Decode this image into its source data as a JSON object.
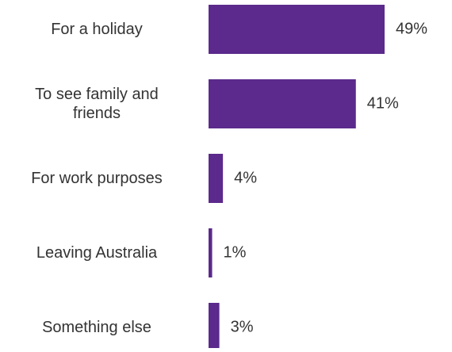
{
  "chart_data": {
    "type": "bar",
    "orientation": "horizontal",
    "categories": [
      "For a holiday",
      "To see family and\nfriends",
      "For work purposes",
      "Leaving Australia",
      "Something else"
    ],
    "values": [
      49,
      41,
      4,
      1,
      3
    ],
    "value_labels": [
      "49%",
      "41%",
      "4%",
      "1%",
      "3%"
    ],
    "unit": "%",
    "xlim": [
      0,
      49
    ],
    "grid": false,
    "legend": "none",
    "bar_color": "#5b2a8c",
    "label_color": "#333333"
  }
}
